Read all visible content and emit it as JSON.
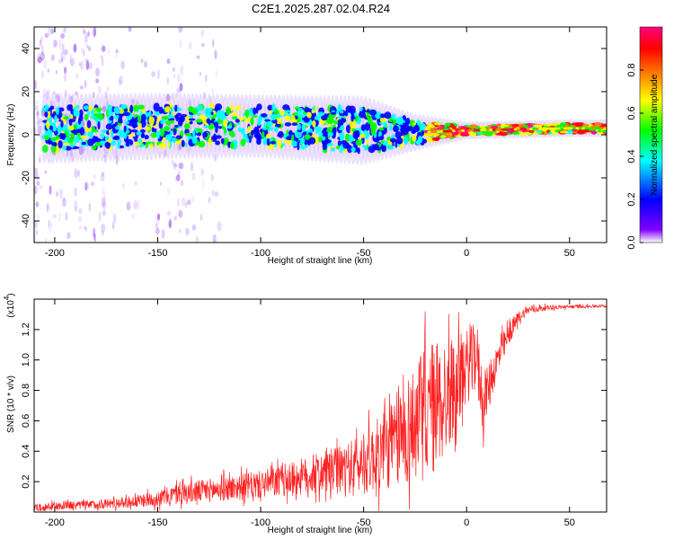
{
  "title": "C2E1.2025.287.02.04.R24",
  "chart_data": [
    {
      "type": "heatmap",
      "name": "spectrogram",
      "xlabel": "Height of straight line (km)",
      "ylabel": "Frequency (Hz)",
      "xlim": [
        -210,
        68
      ],
      "ylim": [
        -50,
        50
      ],
      "xticks": [
        -200,
        -150,
        -100,
        -50,
        0,
        50
      ],
      "xtick_labels": [
        "-200",
        "-150",
        "-100",
        "-50",
        "0",
        "50"
      ],
      "yticks": [
        -40,
        -20,
        0,
        20,
        40
      ],
      "ytick_labels": [
        "-40",
        "-20",
        "0",
        "20",
        "40"
      ],
      "signal_center_hz": [
        {
          "x": -200,
          "y": 3
        },
        {
          "x": -150,
          "y": 4
        },
        {
          "x": -100,
          "y": 4
        },
        {
          "x": -50,
          "y": 2
        },
        {
          "x": -25,
          "y": 1
        },
        {
          "x": 0,
          "y": 2
        },
        {
          "x": 50,
          "y": 3
        },
        {
          "x": 68,
          "y": 3
        }
      ],
      "signal_halfwidth_hz": [
        {
          "x": -200,
          "y": 10
        },
        {
          "x": -100,
          "y": 9
        },
        {
          "x": -50,
          "y": 10
        },
        {
          "x": -25,
          "y": 5
        },
        {
          "x": 0,
          "y": 2
        },
        {
          "x": 68,
          "y": 2
        }
      ],
      "colorbar": {
        "label": "Normalized spectral amplitude",
        "range": [
          0,
          1
        ],
        "ticks": [
          0.0,
          0.2,
          0.4,
          0.6,
          0.8
        ],
        "tick_labels": [
          "0.0",
          "0.2",
          "0.4",
          "0.6",
          "0.8"
        ],
        "colors": [
          "#ffffff",
          "#8000ff",
          "#0000ff",
          "#00ffff",
          "#00ff00",
          "#ffff00",
          "#ff8000",
          "#ff0000",
          "#ff0080"
        ]
      }
    },
    {
      "type": "line",
      "name": "snr",
      "xlabel": "Height of straight line (km)",
      "ylabel": "SNR (10 * v/v)",
      "y_multiplier_label": "(x10",
      "y_multiplier_exp": "4",
      "y_multiplier_close": ")",
      "xlim": [
        -210,
        68
      ],
      "ylim": [
        0,
        14000
      ],
      "xticks": [
        -200,
        -150,
        -100,
        -50,
        0,
        50
      ],
      "xtick_labels": [
        "-200",
        "-150",
        "-100",
        "-50",
        "0",
        "50"
      ],
      "yticks": [
        2000,
        4000,
        6000,
        8000,
        10000,
        12000
      ],
      "ytick_labels": [
        "0.2",
        "0.4",
        "0.6",
        "0.8",
        "1.0",
        "1.2"
      ],
      "line_color": "#ff2020",
      "envelope_x": [
        -210,
        -180,
        -160,
        -150,
        -140,
        -120,
        -100,
        -80,
        -60,
        -50,
        -40,
        -30,
        -20,
        -15,
        -10,
        -5,
        0,
        5,
        8,
        10,
        15,
        20,
        25,
        30,
        40,
        50,
        68
      ],
      "envelope_mean": [
        300,
        500,
        700,
        900,
        1200,
        1500,
        1800,
        2300,
        2800,
        3200,
        4000,
        5200,
        6500,
        7000,
        7500,
        8500,
        9500,
        10500,
        7000,
        8000,
        10000,
        11500,
        12800,
        13300,
        13450,
        13500,
        13550
      ],
      "envelope_spread": [
        250,
        300,
        400,
        500,
        700,
        800,
        900,
        1200,
        1600,
        2000,
        2600,
        3500,
        4500,
        4500,
        4000,
        3000,
        2500,
        2000,
        2000,
        1500,
        1200,
        800,
        400,
        250,
        150,
        120,
        100
      ]
    }
  ]
}
